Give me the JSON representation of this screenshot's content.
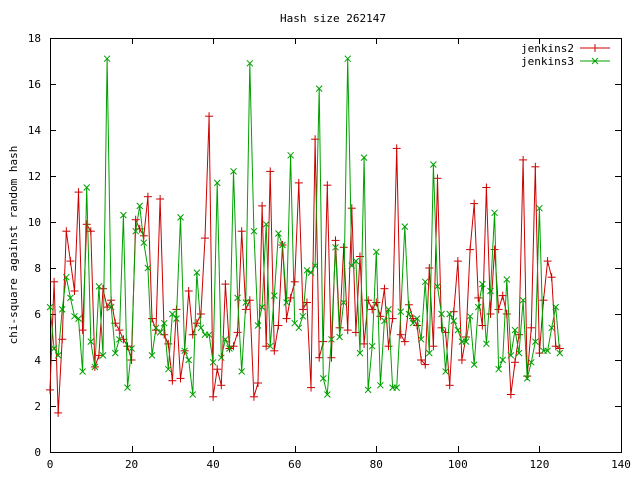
{
  "chart_data": {
    "type": "line",
    "title": "Hash size 262147",
    "xlabel": "",
    "ylabel": "chi-square against random hash",
    "xlim": [
      0,
      140
    ],
    "ylim": [
      0,
      18
    ],
    "x_ticks": [
      0,
      20,
      40,
      60,
      80,
      100,
      120,
      140
    ],
    "y_ticks": [
      0,
      2,
      4,
      6,
      8,
      10,
      12,
      14,
      16,
      18
    ],
    "grid": false,
    "legend_position": "top-right",
    "series": [
      {
        "name": "jenkins2",
        "color": "#cc0000",
        "marker": "plus",
        "x": [
          0,
          1,
          2,
          3,
          4,
          5,
          6,
          7,
          8,
          9,
          10,
          11,
          12,
          13,
          14,
          15,
          16,
          17,
          18,
          19,
          20,
          21,
          22,
          23,
          24,
          25,
          26,
          27,
          28,
          29,
          30,
          31,
          32,
          33,
          34,
          35,
          36,
          37,
          38,
          39,
          40,
          41,
          42,
          43,
          44,
          45,
          46,
          47,
          48,
          49,
          50,
          51,
          52,
          53,
          54,
          55,
          56,
          57,
          58,
          59,
          60,
          61,
          62,
          63,
          64,
          65,
          66,
          67,
          68,
          69,
          70,
          71,
          72,
          73,
          74,
          75,
          76,
          77,
          78,
          79,
          80,
          81,
          82,
          83,
          84,
          85,
          86,
          87,
          88,
          89,
          90,
          91,
          92,
          93,
          94,
          95,
          96,
          97,
          98,
          99,
          100,
          101,
          102,
          103,
          104,
          105,
          106,
          107,
          108,
          109,
          110,
          111,
          112,
          113,
          114,
          115,
          116,
          117,
          118,
          119,
          120,
          121,
          122,
          123,
          124,
          125
        ],
        "values": [
          2.7,
          7.4,
          1.7,
          4.9,
          9.6,
          8.3,
          7.0,
          11.3,
          5.3,
          9.9,
          9.6,
          3.7,
          4.2,
          7.1,
          6.3,
          6.6,
          5.6,
          5.3,
          4.9,
          4.6,
          4.0,
          10.1,
          9.7,
          9.4,
          11.1,
          5.8,
          5.3,
          11.0,
          5.1,
          4.7,
          3.1,
          6.2,
          3.2,
          4.4,
          7.0,
          5.1,
          5.6,
          6.0,
          9.3,
          14.6,
          2.4,
          3.6,
          2.9,
          7.3,
          4.5,
          4.6,
          5.2,
          9.6,
          6.2,
          6.6,
          2.4,
          3.0,
          10.7,
          4.6,
          12.2,
          4.4,
          5.5,
          9.0,
          5.8,
          6.7,
          7.4,
          11.7,
          6.2,
          6.5,
          2.8,
          13.6,
          4.1,
          4.8,
          11.6,
          4.1,
          9.2,
          5.4,
          8.9,
          5.3,
          10.6,
          5.2,
          8.5,
          4.7,
          6.6,
          6.2,
          6.5,
          5.9,
          7.1,
          4.6,
          5.8,
          13.2,
          5.1,
          4.8,
          6.4,
          5.8,
          5.5,
          4.0,
          3.8,
          8.0,
          4.6,
          11.9,
          5.4,
          5.2,
          2.9,
          6.1,
          8.3,
          4.0,
          5.0,
          8.8,
          10.8,
          6.7,
          5.5,
          11.5,
          6.0,
          8.8,
          6.2,
          6.8,
          6.0,
          2.5,
          3.9,
          5.1,
          12.7,
          3.3,
          5.4,
          12.4,
          4.3,
          6.6,
          8.3,
          7.6,
          4.6,
          4.5
        ]
      },
      {
        "name": "jenkins3",
        "color": "#00a000",
        "marker": "cross",
        "x": [
          0,
          1,
          2,
          3,
          4,
          5,
          6,
          7,
          8,
          9,
          10,
          11,
          12,
          13,
          14,
          15,
          16,
          17,
          18,
          19,
          20,
          21,
          22,
          23,
          24,
          25,
          26,
          27,
          28,
          29,
          30,
          31,
          32,
          33,
          34,
          35,
          36,
          37,
          38,
          39,
          40,
          41,
          42,
          43,
          44,
          45,
          46,
          47,
          48,
          49,
          50,
          51,
          52,
          53,
          54,
          55,
          56,
          57,
          58,
          59,
          60,
          61,
          62,
          63,
          64,
          65,
          66,
          67,
          68,
          69,
          70,
          71,
          72,
          73,
          74,
          75,
          76,
          77,
          78,
          79,
          80,
          81,
          82,
          83,
          84,
          85,
          86,
          87,
          88,
          89,
          90,
          91,
          92,
          93,
          94,
          95,
          96,
          97,
          98,
          99,
          100,
          101,
          102,
          103,
          104,
          105,
          106,
          107,
          108,
          109,
          110,
          111,
          112,
          113,
          114,
          115,
          116,
          117,
          118,
          119,
          120,
          121,
          122,
          123,
          124,
          125
        ],
        "values": [
          6.3,
          4.5,
          4.2,
          6.2,
          7.6,
          6.7,
          5.9,
          5.8,
          3.5,
          11.5,
          4.8,
          3.7,
          7.2,
          4.2,
          17.1,
          6.3,
          4.3,
          4.9,
          10.3,
          2.8,
          4.5,
          9.6,
          10.7,
          9.1,
          8.0,
          4.2,
          5.4,
          5.2,
          5.6,
          3.6,
          6.0,
          5.8,
          10.2,
          4.4,
          4.0,
          2.5,
          7.8,
          5.4,
          5.1,
          5.1,
          3.9,
          11.7,
          4.1,
          4.9,
          4.5,
          12.2,
          6.7,
          3.5,
          6.5,
          16.9,
          9.6,
          5.5,
          6.3,
          9.9,
          4.6,
          6.8,
          9.5,
          9.0,
          6.5,
          12.9,
          5.6,
          5.4,
          5.9,
          7.9,
          7.8,
          8.1,
          15.8,
          3.2,
          2.5,
          4.9,
          8.9,
          5.0,
          6.5,
          17.1,
          8.1,
          8.3,
          4.3,
          12.8,
          2.7,
          4.6,
          8.7,
          2.9,
          5.7,
          6.2,
          2.8,
          2.8,
          6.1,
          9.8,
          6.0,
          5.6,
          5.8,
          4.9,
          7.4,
          4.3,
          12.5,
          7.2,
          6.0,
          3.5,
          6.0,
          5.7,
          5.3,
          4.8,
          4.8,
          5.9,
          3.8,
          6.3,
          7.3,
          4.7,
          7.0,
          10.4,
          3.6,
          4.0,
          7.5,
          4.2,
          5.3,
          4.3,
          6.6,
          3.2,
          3.9,
          4.8,
          10.6,
          4.4,
          4.4,
          5.4,
          6.3,
          4.3
        ]
      }
    ]
  }
}
